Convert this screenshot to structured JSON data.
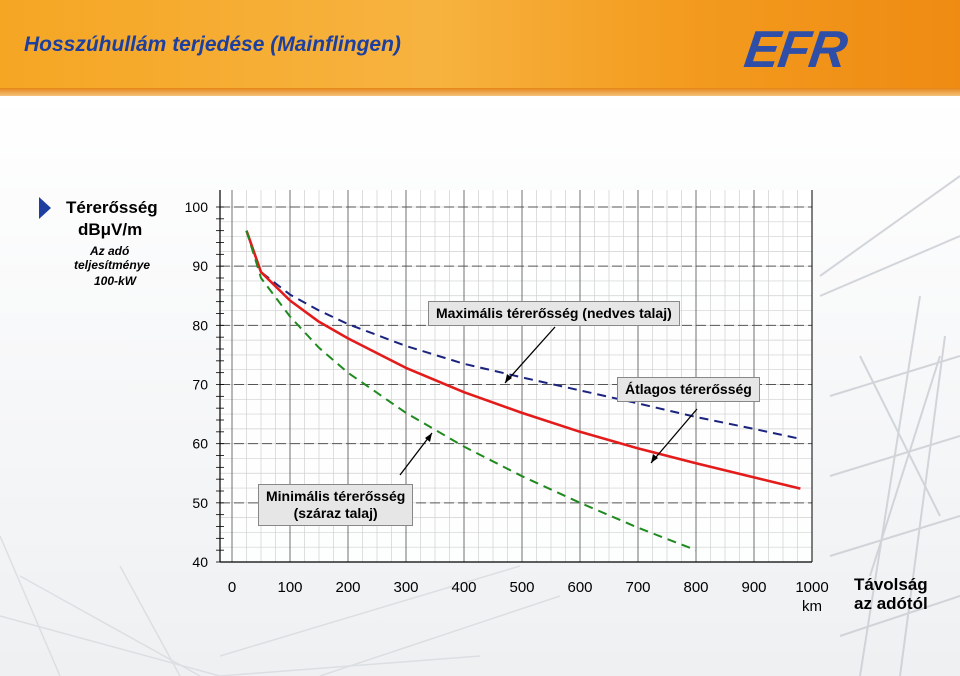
{
  "header": {
    "title": "Hosszúhullám terjedése (Mainflingen)",
    "logo_text": "EFR",
    "bg_color": "#f5a623",
    "title_color": "#1d3f9f"
  },
  "y_axis": {
    "label": "Térerősség",
    "unit": "dBμV/m",
    "note_line1": "Az adó",
    "note_line2": "teljesítménye",
    "note_line3": "100-kW",
    "bullet_icon": "triangle-right-icon",
    "bullet_color": "#1d3f9f"
  },
  "x_axis": {
    "label_line1": "Távolság",
    "label_line2": "az adótól",
    "unit": "km"
  },
  "callouts": {
    "max": "Maximális térerősség (nedves talaj)",
    "avg": "Átlagos térerősség",
    "min_line1": "Minimális térerősség",
    "min_line2": "(száraz talaj)"
  },
  "chart_data": {
    "type": "line",
    "xlim": [
      0,
      1000
    ],
    "ylim": [
      40,
      100
    ],
    "x_ticks": [
      0,
      100,
      200,
      300,
      400,
      500,
      600,
      700,
      800,
      900,
      1000
    ],
    "x_tick_labels": [
      "0",
      "100",
      "200",
      "300",
      "400",
      "500",
      "600",
      "700",
      "800",
      "900",
      "1000"
    ],
    "y_ticks": [
      40,
      50,
      60,
      70,
      80,
      90,
      100
    ],
    "y_tick_labels": [
      "40",
      "50",
      "60",
      "70",
      "80",
      "90",
      "100"
    ],
    "grid": true,
    "series": [
      {
        "name": "Maximális térerősség (nedves talaj)",
        "color": "#1a237e",
        "style": "dashed",
        "x": [
          25,
          50,
          100,
          150,
          200,
          300,
          400,
          500,
          600,
          700,
          800,
          900,
          980
        ],
        "y": [
          96,
          89,
          85.2,
          82.5,
          80.2,
          76.5,
          73.5,
          71.2,
          69,
          66.8,
          64.5,
          62.5,
          60.8
        ]
      },
      {
        "name": "Átlagos térerősség",
        "color": "#e31b1b",
        "style": "solid",
        "x": [
          25,
          50,
          100,
          150,
          200,
          300,
          400,
          500,
          600,
          700,
          800,
          900,
          980
        ],
        "y": [
          96,
          89,
          84.2,
          80.6,
          77.8,
          72.8,
          68.7,
          65.2,
          62,
          59.2,
          56.7,
          54.3,
          52.4
        ]
      },
      {
        "name": "Minimális térerősség (száraz talaj)",
        "color": "#1f8a1f",
        "style": "dashed",
        "x": [
          25,
          50,
          100,
          150,
          200,
          300,
          400,
          500,
          600,
          700,
          800
        ],
        "y": [
          96,
          88,
          81.5,
          76.2,
          72,
          65.2,
          59.5,
          54.5,
          50,
          45.8,
          42
        ]
      }
    ]
  }
}
